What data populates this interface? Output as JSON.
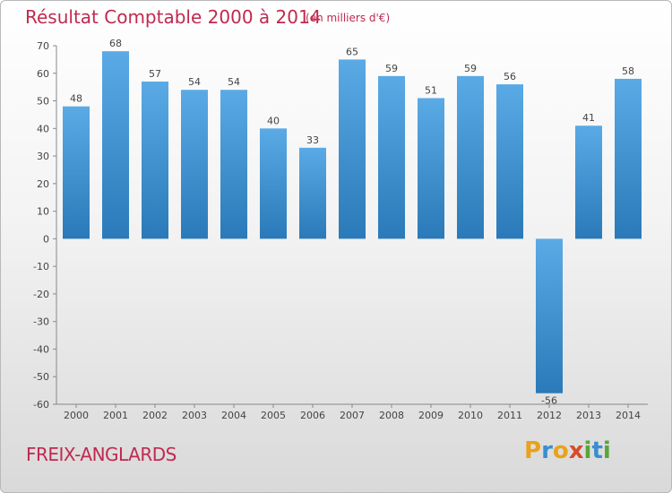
{
  "chart_data": {
    "type": "bar",
    "title": "Résultat Comptable 2000 à 2014",
    "subtitle": "(en milliers d'€)",
    "categories": [
      "2000",
      "2001",
      "2002",
      "2003",
      "2004",
      "2005",
      "2006",
      "2007",
      "2008",
      "2009",
      "2010",
      "2011",
      "2012",
      "2013",
      "2014"
    ],
    "values": [
      48,
      68,
      57,
      54,
      54,
      40,
      33,
      65,
      59,
      51,
      59,
      56,
      -56,
      41,
      58
    ],
    "ylim": [
      -60,
      70
    ],
    "yticks": [
      70,
      60,
      50,
      40,
      30,
      20,
      10,
      0,
      -10,
      -20,
      -30,
      -40,
      -50,
      -60
    ],
    "grid": false,
    "legend": "none"
  },
  "footer": {
    "commune": "FREIX-ANGLARDS",
    "logo_letters": [
      "P",
      "r",
      "o",
      "x",
      "i",
      "t",
      "i"
    ],
    "logo_colors": [
      "#e8a21b",
      "#3b8ed0",
      "#e8a21b",
      "#d64b2b",
      "#5aa53a",
      "#3b8ed0",
      "#5aa53a"
    ]
  },
  "colors": {
    "bar_light": "#5aaae6",
    "bar_dark": "#2a7ab9",
    "text_accent": "#c0294f"
  }
}
